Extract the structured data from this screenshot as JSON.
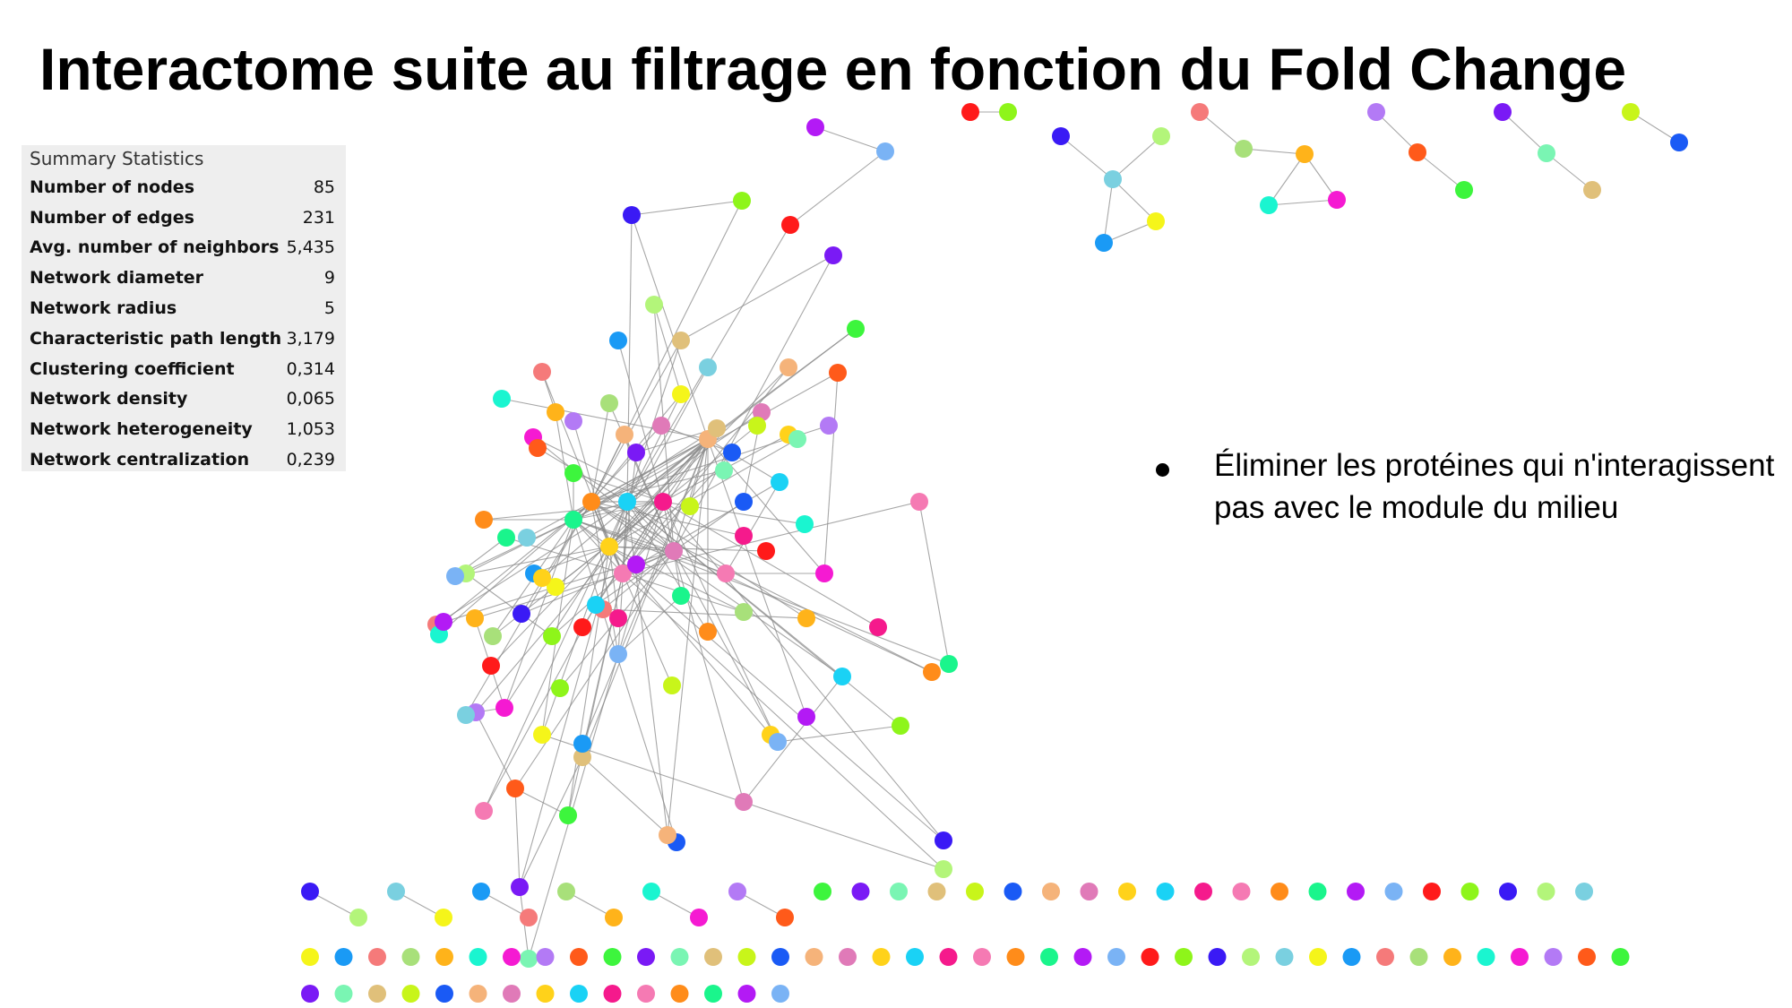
{
  "slide": {
    "title": "Interactome suite au filtrage en fonction du Fold Change",
    "bullet": "Éliminer les protéines qui n'interagissent pas avec le module du milieu"
  },
  "summary_statistics": {
    "title": "Summary Statistics",
    "rows": [
      {
        "label": "Number of nodes",
        "value": "85"
      },
      {
        "label": "Number of edges",
        "value": "231"
      },
      {
        "label": "Avg. number of neighbors",
        "value": "5,435"
      },
      {
        "label": "Network diameter",
        "value": "9"
      },
      {
        "label": "Network radius",
        "value": "5"
      },
      {
        "label": "Characteristic path length",
        "value": "3,179"
      },
      {
        "label": "Clustering coefficient",
        "value": "0,314"
      },
      {
        "label": "Network density",
        "value": "0,065"
      },
      {
        "label": "Network heterogeneity",
        "value": "1,053"
      },
      {
        "label": "Network centralization",
        "value": "0,239"
      }
    ]
  },
  "network": {
    "edge_color": "#8a8a8a",
    "palette": [
      "#ff1a1a",
      "#ff5a1a",
      "#ff8c1a",
      "#ffb31a",
      "#ffd21a",
      "#f5f51a",
      "#c8f51a",
      "#8ef51a",
      "#3df53d",
      "#1af58c",
      "#1af5d0",
      "#1ad2f5",
      "#1a9af5",
      "#1a5af5",
      "#3a1af5",
      "#7a1af5",
      "#b31af5",
      "#f51ad2",
      "#f51a8c",
      "#f57a7a",
      "#f5b37a",
      "#b3f57a",
      "#7af5b3",
      "#7ab3f5",
      "#b37af5",
      "#f57ab3",
      "#a8e07a",
      "#e07ab8",
      "#7ad0e0",
      "#e0c07a"
    ]
  }
}
